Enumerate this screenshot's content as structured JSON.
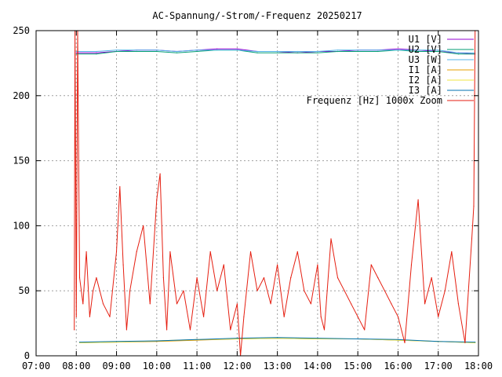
{
  "chart_data": {
    "type": "line",
    "title": "AC-Spannung/-Strom/-Frequenz 20250217",
    "xlabel": "",
    "ylabel": "",
    "x_range": [
      "07:00",
      "18:00"
    ],
    "ylim": [
      0,
      250
    ],
    "x_ticks": [
      "07:00",
      "08:00",
      "09:00",
      "10:00",
      "11:00",
      "12:00",
      "13:00",
      "14:00",
      "15:00",
      "16:00",
      "17:00",
      "18:00"
    ],
    "y_ticks": [
      0,
      50,
      100,
      150,
      200,
      250
    ],
    "grid": true,
    "legend_position": "top-right",
    "series": [
      {
        "name": "U1 [V]",
        "color": "#9400d3",
        "x": [
          "08:00",
          "08:30",
          "09:00",
          "09:30",
          "10:00",
          "10:30",
          "11:00",
          "11:30",
          "12:00",
          "12:30",
          "13:00",
          "13:30",
          "14:00",
          "14:30",
          "15:00",
          "15:30",
          "16:00",
          "16:30",
          "17:00",
          "17:30",
          "17:55"
        ],
        "values": [
          233,
          233,
          234,
          235,
          235,
          234,
          235,
          236,
          236,
          234,
          234,
          233,
          234,
          234,
          235,
          235,
          236,
          235,
          234,
          233,
          232
        ]
      },
      {
        "name": "U2 [V]",
        "color": "#009e73",
        "x": [
          "08:00",
          "08:30",
          "09:00",
          "09:30",
          "10:00",
          "10:30",
          "11:00",
          "11:30",
          "12:00",
          "12:30",
          "13:00",
          "13:30",
          "14:00",
          "14:30",
          "15:00",
          "15:30",
          "16:00",
          "16:30",
          "17:00",
          "17:30",
          "17:55"
        ],
        "values": [
          232,
          232,
          234,
          234,
          234,
          233,
          234,
          235,
          235,
          233,
          233,
          233,
          233,
          234,
          234,
          234,
          235,
          234,
          234,
          232,
          232
        ]
      },
      {
        "name": "U3 [W]",
        "color": "#56b4e9",
        "x": [
          "08:00",
          "08:30",
          "09:00",
          "09:30",
          "10:00",
          "10:30",
          "11:00",
          "11:30",
          "12:00",
          "12:30",
          "13:00",
          "13:30",
          "14:00",
          "14:30",
          "15:00",
          "15:30",
          "16:00",
          "16:30",
          "17:00",
          "17:30",
          "17:55"
        ],
        "values": [
          234,
          234,
          235,
          235,
          235,
          234,
          235,
          235,
          235,
          234,
          234,
          234,
          234,
          235,
          235,
          235,
          235,
          235,
          235,
          233,
          233
        ]
      },
      {
        "name": "I1 [A]",
        "color": "#e69f00",
        "x": [
          "08:05",
          "09:00",
          "10:00",
          "11:00",
          "12:00",
          "13:00",
          "14:00",
          "15:00",
          "16:00",
          "17:00",
          "17:55"
        ],
        "values": [
          10,
          10.5,
          11,
          12,
          13,
          13.5,
          13,
          13,
          12,
          11,
          10
        ]
      },
      {
        "name": "I2 [A]",
        "color": "#f0e442",
        "x": [
          "08:05",
          "09:00",
          "10:00",
          "11:00",
          "12:00",
          "13:00",
          "14:00",
          "15:00",
          "16:00",
          "17:00",
          "17:55"
        ],
        "values": [
          10,
          10.5,
          11.5,
          12.5,
          13,
          13.5,
          13,
          13,
          12,
          11,
          10
        ]
      },
      {
        "name": "I3 [A]",
        "color": "#0072b2",
        "x": [
          "08:05",
          "09:00",
          "10:00",
          "11:00",
          "12:00",
          "13:00",
          "14:00",
          "15:00",
          "16:00",
          "17:00",
          "17:55"
        ],
        "values": [
          10.5,
          11,
          11.5,
          12.5,
          13.5,
          14,
          13.5,
          13,
          12.5,
          11,
          10.5
        ]
      },
      {
        "name": "Frequenz [Hz] 1000x Zoom",
        "color": "#e51e10",
        "x": [
          "07:57",
          "07:58",
          "08:00",
          "08:02",
          "08:05",
          "08:10",
          "08:15",
          "08:20",
          "08:25",
          "08:30",
          "08:40",
          "08:50",
          "09:00",
          "09:05",
          "09:10",
          "09:15",
          "09:20",
          "09:30",
          "09:40",
          "09:50",
          "10:00",
          "10:05",
          "10:10",
          "10:15",
          "10:20",
          "10:30",
          "10:40",
          "10:50",
          "11:00",
          "11:10",
          "11:20",
          "11:30",
          "11:40",
          "11:50",
          "12:00",
          "12:05",
          "12:10",
          "12:20",
          "12:30",
          "12:40",
          "12:50",
          "13:00",
          "13:10",
          "13:20",
          "13:30",
          "13:40",
          "13:50",
          "14:00",
          "14:05",
          "14:10",
          "14:20",
          "14:30",
          "14:40",
          "14:50",
          "15:00",
          "15:10",
          "15:20",
          "15:30",
          "15:40",
          "15:50",
          "16:00",
          "16:10",
          "16:20",
          "16:30",
          "16:40",
          "16:50",
          "17:00",
          "17:10",
          "17:20",
          "17:30",
          "17:40",
          "17:50",
          "17:53",
          "17:55"
        ],
        "values": [
          20,
          250,
          30,
          250,
          60,
          40,
          80,
          30,
          50,
          60,
          40,
          30,
          80,
          130,
          70,
          20,
          50,
          80,
          100,
          40,
          120,
          140,
          60,
          20,
          80,
          40,
          50,
          20,
          60,
          30,
          80,
          50,
          70,
          20,
          40,
          0,
          30,
          80,
          50,
          60,
          40,
          70,
          30,
          60,
          80,
          50,
          40,
          70,
          30,
          20,
          90,
          60,
          50,
          40,
          30,
          20,
          70,
          60,
          50,
          40,
          30,
          10,
          70,
          120,
          40,
          60,
          30,
          50,
          80,
          40,
          10,
          90,
          115,
          250
        ]
      }
    ]
  }
}
